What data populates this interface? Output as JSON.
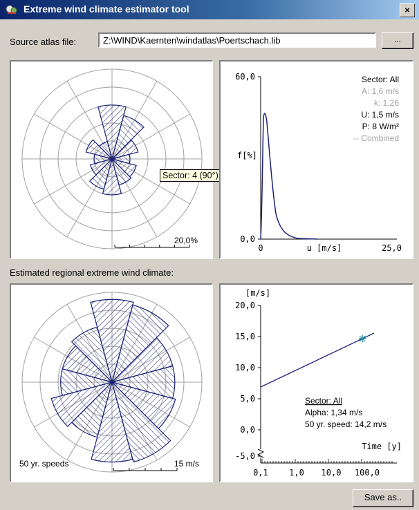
{
  "window": {
    "title": "Extreme wind climate estimator tool",
    "close_label": "×"
  },
  "source": {
    "label": "Source atlas file:",
    "path": "Z:\\WIND\\Kaernten\\windatlas\\Poertschach.lib",
    "browse_label": "..."
  },
  "top_rose": {
    "scale_label": "20,0%",
    "max_percent": 20,
    "sector_percents": [
      12,
      10,
      6,
      4,
      5.6,
      6,
      8,
      7,
      5,
      4,
      6,
      4
    ],
    "tooltip": "Sector: 4 (90°) 5,6%"
  },
  "distribution": {
    "y_top": "60,0",
    "y_bottom": "0,0",
    "y_label": "f[%]",
    "x_left": "0",
    "x_right": "25,0",
    "x_label": "u [m/s]",
    "info": {
      "sector": "Sector: All",
      "a": "A: 1,6 m/s",
      "k": "k: 1,26",
      "u": "U: 1,5 m/s",
      "p": "P: 8 W/m²",
      "combined": "-- Combined"
    }
  },
  "extreme": {
    "section_label": "Estimated regional extreme wind climate:",
    "bottom_rose": {
      "caption": "50 yr. speeds",
      "scale_label": "15 m/s",
      "max_speed": 15,
      "sector_speeds": [
        14.5,
        14,
        11,
        11,
        11.5,
        14.5,
        14,
        10,
        11,
        9,
        9,
        10
      ]
    },
    "gumbel": {
      "y_unit": "[m/s]",
      "y_ticks": [
        "20,0",
        "15,0",
        "10,0",
        "5,0",
        "0,0",
        "-5,0"
      ],
      "x_ticks": [
        "0,1",
        "1,0",
        "10,0",
        "100,0"
      ],
      "x_label": "Time [y]",
      "sector": "Sector: All",
      "alpha": "Alpha: 1,34 m/s",
      "speed50": "50 yr. speed: 14,2 m/s"
    }
  },
  "save_label": "Save as..",
  "colors": {
    "plot_line": "#1c2277",
    "marker": "#1f8fa0"
  }
}
